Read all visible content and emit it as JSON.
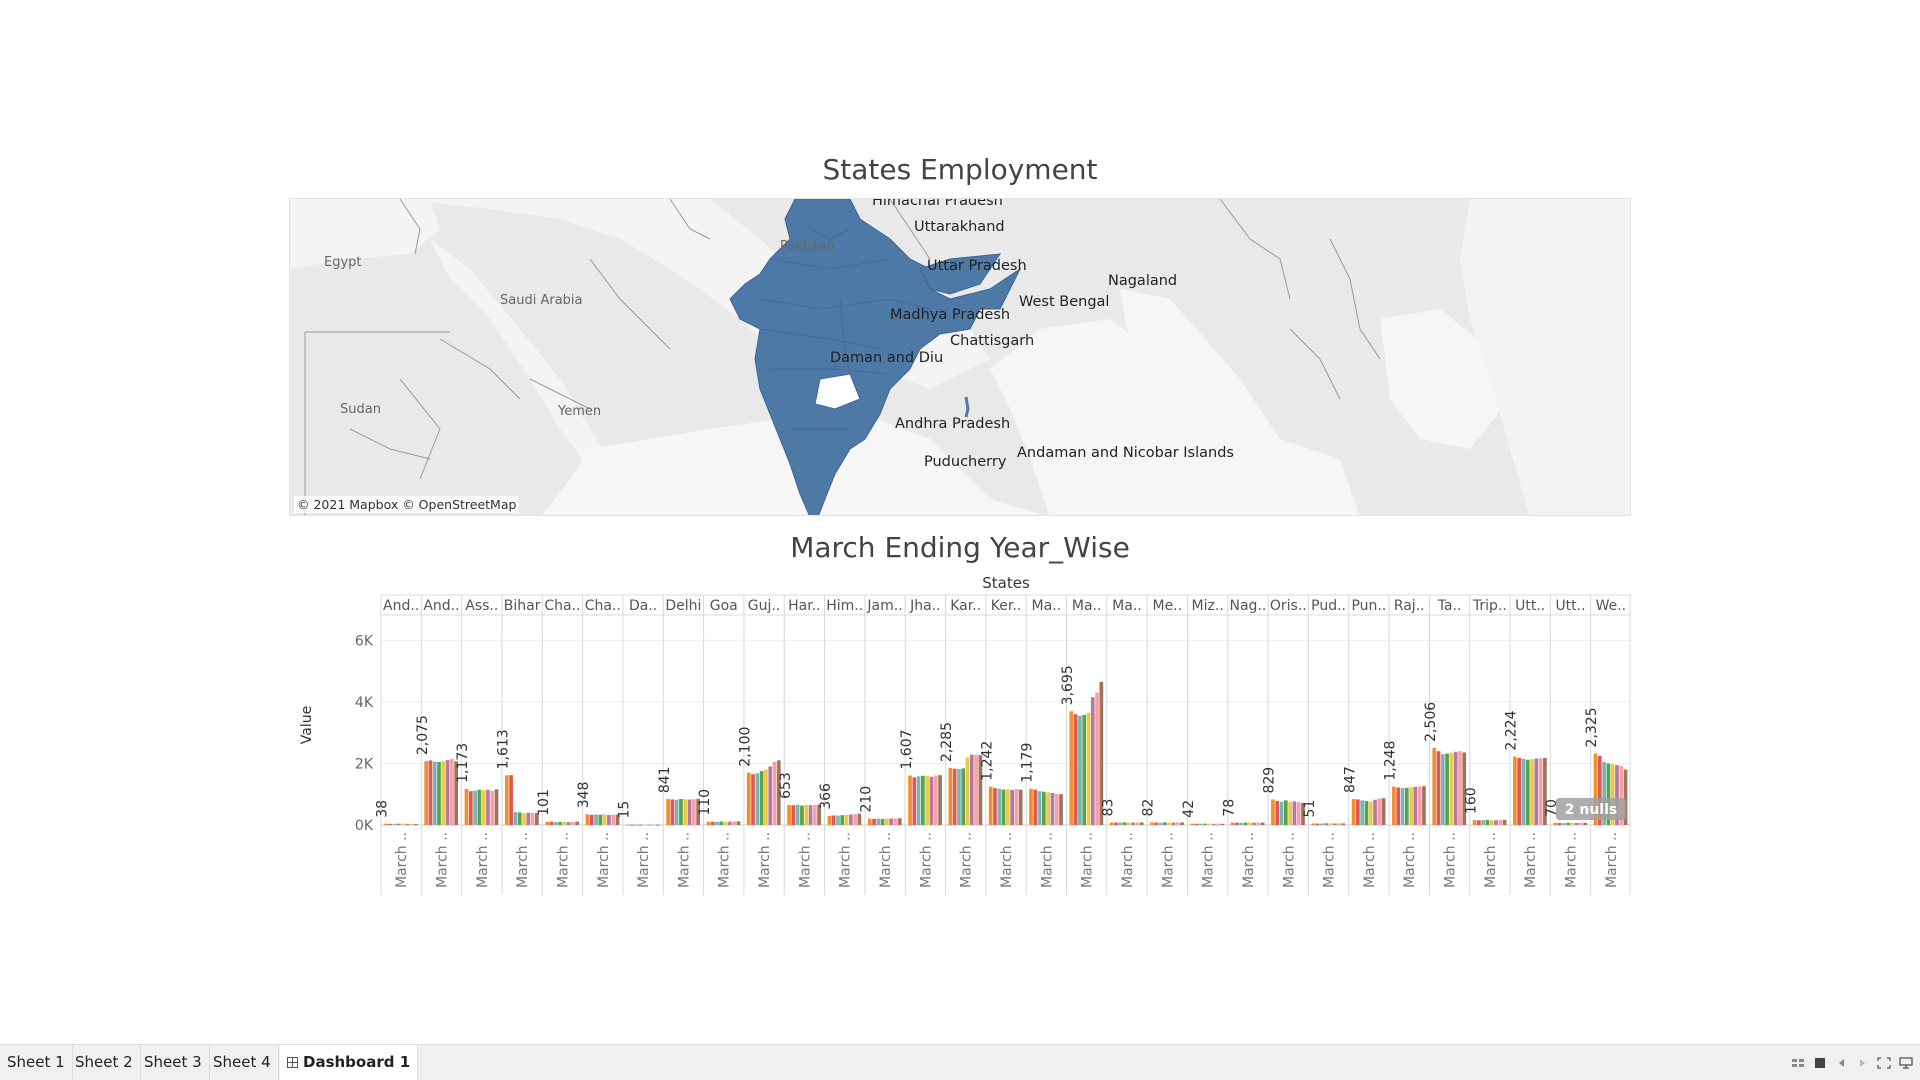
{
  "dashboard": {
    "map_title": "States Employment",
    "bar_title": "March Ending Year_Wise"
  },
  "map": {
    "attribution": "© 2021 Mapbox © OpenStreetMap",
    "fill_color": "#4e79a7",
    "country_labels": [
      "Egypt",
      "Saudi Arabia",
      "Pakistan",
      "Sudan",
      "Yemen"
    ],
    "state_labels": [
      "Himachal Pradesh",
      "Uttarakhand",
      "Uttar Pradesh",
      "Nagaland",
      "West Bengal",
      "Madhya Pradesh",
      "Chattisgarh",
      "Daman and Diu",
      "Andhra Pradesh",
      "Puducherry",
      "Andaman and Nicobar Islands"
    ]
  },
  "chart_data": {
    "type": "bar",
    "title": "March Ending Year_Wise",
    "column_header": "States",
    "ylabel": "Value",
    "ylim": [
      0,
      6500
    ],
    "yticks": [
      0,
      2000,
      4000,
      6000
    ],
    "ytick_labels": [
      "0K",
      "2K",
      "4K",
      "6K"
    ],
    "x_tick_label": "March ..",
    "null_indicator": "2 nulls",
    "series_colors": [
      "#f28e2b",
      "#e15759",
      "#76b7b2",
      "#59a14f",
      "#edc948",
      "#b07aa1",
      "#ff9da7",
      "#9c755f"
    ],
    "states": [
      {
        "name": "And..",
        "label": "38",
        "values": [
          40,
          38,
          35,
          42,
          40,
          38,
          36,
          35
        ]
      },
      {
        "name": "And..",
        "label": "2,075",
        "values": [
          2075,
          2100,
          2060,
          2050,
          2080,
          2110,
          2150,
          2070
        ]
      },
      {
        "name": "Ass..",
        "label": "1,173",
        "values": [
          1173,
          1100,
          1120,
          1150,
          1130,
          1140,
          1110,
          1160
        ]
      },
      {
        "name": "Bihar",
        "label": "1,613",
        "values": [
          1613,
          1620,
          420,
          410,
          380,
          400,
          390,
          385
        ]
      },
      {
        "name": "Cha..",
        "label": "101",
        "values": [
          101,
          110,
          95,
          100,
          105,
          98,
          102,
          108
        ]
      },
      {
        "name": "Cha..",
        "label": "348",
        "values": [
          348,
          330,
          340,
          335,
          345,
          325,
          338,
          342
        ]
      },
      {
        "name": "Da..",
        "label": "15",
        "values": [
          15,
          12,
          14,
          13,
          16,
          15,
          14,
          13
        ]
      },
      {
        "name": "Delhi",
        "label": "841",
        "values": [
          841,
          830,
          820,
          845,
          835,
          825,
          840,
          850
        ]
      },
      {
        "name": "Goa",
        "label": "110",
        "values": [
          110,
          105,
          100,
          115,
          112,
          108,
          120,
          118
        ]
      },
      {
        "name": "Guj..",
        "label": "2,100",
        "values": [
          1700,
          1650,
          1680,
          1750,
          1800,
          1900,
          2050,
          2100
        ]
      },
      {
        "name": "Har..",
        "label": "653",
        "values": [
          653,
          640,
          660,
          630,
          650,
          645,
          655,
          660
        ]
      },
      {
        "name": "Him..",
        "label": "366",
        "values": [
          300,
          310,
          305,
          320,
          330,
          340,
          350,
          366
        ]
      },
      {
        "name": "Jam..",
        "label": "210",
        "values": [
          210,
          200,
          205,
          195,
          215,
          208,
          212,
          218
        ]
      },
      {
        "name": "Jha..",
        "label": "1,607",
        "values": [
          1607,
          1550,
          1580,
          1600,
          1590,
          1570,
          1610,
          1620
        ]
      },
      {
        "name": "Kar..",
        "label": "2,285",
        "values": [
          1850,
          1830,
          1820,
          1840,
          2200,
          2285,
          2280,
          2270
        ]
      },
      {
        "name": "Ker..",
        "label": "1,242",
        "values": [
          1242,
          1200,
          1180,
          1150,
          1160,
          1140,
          1170,
          1150
        ]
      },
      {
        "name": "Ma..",
        "label": "1,179",
        "values": [
          1179,
          1150,
          1100,
          1080,
          1060,
          1040,
          1020,
          1000
        ]
      },
      {
        "name": "Ma..",
        "label": "3,695",
        "values": [
          3695,
          3600,
          3550,
          3580,
          3650,
          4150,
          4300,
          4650
        ]
      },
      {
        "name": "Ma..",
        "label": "83",
        "values": [
          83,
          80,
          78,
          85,
          82,
          79,
          81,
          84
        ]
      },
      {
        "name": "Me..",
        "label": "82",
        "values": [
          82,
          80,
          75,
          85,
          78,
          79,
          83,
          81
        ]
      },
      {
        "name": "Miz..",
        "label": "42",
        "values": [
          42,
          40,
          38,
          44,
          41,
          39,
          43,
          40
        ]
      },
      {
        "name": "Nag..",
        "label": "78",
        "values": [
          78,
          75,
          70,
          80,
          77,
          74,
          79,
          76
        ]
      },
      {
        "name": "Oris..",
        "label": "829",
        "values": [
          829,
          780,
          760,
          800,
          750,
          770,
          740,
          720
        ]
      },
      {
        "name": "Pud..",
        "label": "51",
        "values": [
          51,
          48,
          45,
          55,
          52,
          49,
          50,
          53
        ]
      },
      {
        "name": "Pun..",
        "label": "847",
        "values": [
          847,
          830,
          800,
          780,
          760,
          820,
          860,
          870
        ]
      },
      {
        "name": "Raj..",
        "label": "1,248",
        "values": [
          1248,
          1220,
          1200,
          1210,
          1230,
          1240,
          1250,
          1260
        ]
      },
      {
        "name": "Ta..",
        "label": "2,506",
        "values": [
          2506,
          2400,
          2300,
          2320,
          2350,
          2380,
          2400,
          2360
        ]
      },
      {
        "name": "Trip..",
        "label": "160",
        "values": [
          160,
          150,
          155,
          165,
          158,
          152,
          162,
          168
        ]
      },
      {
        "name": "Utt..",
        "label": "2,224",
        "values": [
          2224,
          2180,
          2150,
          2120,
          2140,
          2160,
          2170,
          2180
        ]
      },
      {
        "name": "Utt..",
        "label": "70",
        "values": [
          70,
          65,
          60,
          75,
          72,
          68,
          73,
          71
        ]
      },
      {
        "name": "We..",
        "label": "2,325",
        "values": [
          2325,
          2250,
          2050,
          2000,
          1980,
          1950,
          1920,
          1800
        ]
      }
    ]
  },
  "tabs": [
    {
      "label": "Sheet 1"
    },
    {
      "label": "Sheet 2"
    },
    {
      "label": "Sheet 3"
    },
    {
      "label": "Sheet 4"
    },
    {
      "label": "Dashboard 1",
      "active": true
    }
  ]
}
